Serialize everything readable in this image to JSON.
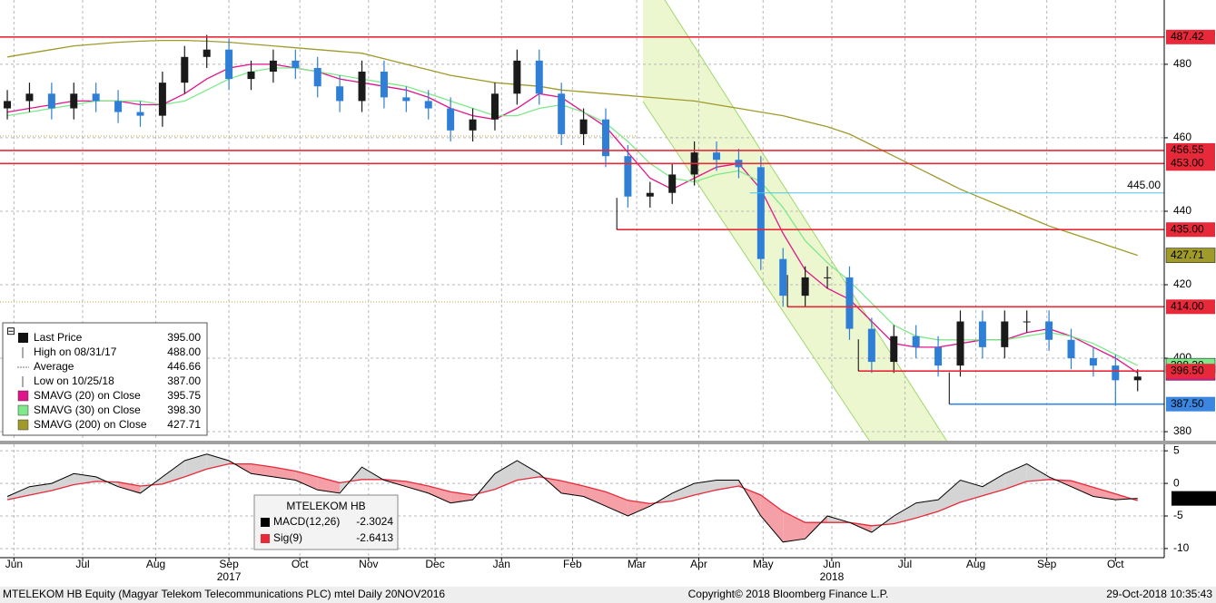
{
  "chart_data": {
    "type": "candlestick",
    "x": [
      0,
      1,
      2,
      3,
      4,
      5,
      6,
      7,
      8,
      9,
      10,
      11,
      12,
      13,
      14,
      15,
      16,
      17,
      18,
      19,
      20,
      21,
      22,
      23,
      24,
      25,
      26,
      27,
      28,
      29,
      30,
      31,
      32,
      33,
      34,
      35,
      36,
      37,
      38,
      39,
      40,
      41,
      42,
      43,
      44,
      45,
      46,
      47,
      48,
      49,
      50,
      51
    ],
    "xlim": [
      -0.33,
      52.2
    ],
    "xticks": [
      {
        "value": 0.3,
        "label": "Jun"
      },
      {
        "value": 3.4,
        "label": "Jul"
      },
      {
        "value": 6.7,
        "label": "Aug"
      },
      {
        "value": 10.0,
        "label": "Sep"
      },
      {
        "value": 13.2,
        "label": "Oct"
      },
      {
        "value": 16.3,
        "label": "Nov"
      },
      {
        "value": 19.3,
        "label": "Dec"
      },
      {
        "value": 22.3,
        "label": "Jan"
      },
      {
        "value": 25.5,
        "label": "Feb"
      },
      {
        "value": 28.4,
        "label": "Mar"
      },
      {
        "value": 31.2,
        "label": "Apr"
      },
      {
        "value": 34.1,
        "label": "May"
      },
      {
        "value": 37.2,
        "label": "Jun"
      },
      {
        "value": 40.5,
        "label": "Jul"
      },
      {
        "value": 43.7,
        "label": "Aug"
      },
      {
        "value": 46.9,
        "label": "Sep"
      },
      {
        "value": 50.0,
        "label": "Oct"
      }
    ],
    "year_ticks": [
      {
        "value": 10.0,
        "label": "2017"
      },
      {
        "value": 37.2,
        "label": "2018"
      }
    ],
    "ylim": [
      377.3,
      497.5
    ],
    "yticks": [
      380,
      400,
      420,
      440,
      460,
      480
    ],
    "grid": true,
    "up_color": "#1a1a1a",
    "down_color": "#2f7fd6",
    "open": [
      468,
      470,
      472,
      468,
      472,
      470,
      467,
      466,
      475,
      482,
      484,
      476,
      478,
      481,
      479,
      474,
      470,
      478,
      471,
      470,
      468,
      462,
      465,
      472,
      481,
      472,
      461,
      465,
      455,
      444,
      445,
      450,
      456,
      454,
      452,
      427,
      417,
      422,
      422,
      408,
      399,
      406,
      403,
      398,
      410,
      403,
      410,
      410,
      405,
      400,
      398,
      394
    ],
    "high": [
      473,
      475,
      475,
      475,
      475,
      473,
      470,
      478,
      485,
      488,
      487,
      481,
      484,
      484,
      482,
      477,
      481,
      481,
      474,
      473,
      471,
      468,
      475,
      484,
      484,
      475,
      468,
      468,
      458,
      448,
      453,
      459,
      459,
      457,
      455,
      430,
      425,
      425,
      425,
      411,
      409,
      409,
      406,
      413,
      413,
      413,
      413,
      413,
      408,
      403,
      401,
      397
    ],
    "low": [
      465,
      467,
      465,
      465,
      467,
      464,
      463,
      463,
      472,
      479,
      473,
      473,
      475,
      476,
      471,
      467,
      467,
      468,
      467,
      465,
      459,
      459,
      462,
      469,
      469,
      458,
      458,
      452,
      441,
      441,
      442,
      447,
      451,
      449,
      424,
      414,
      414,
      419,
      405,
      396,
      396,
      400,
      395,
      395,
      400,
      400,
      407,
      402,
      397,
      395,
      387,
      391
    ],
    "close": [
      470,
      472,
      468,
      472,
      470,
      467,
      466,
      475,
      482,
      484,
      476,
      478,
      481,
      479,
      474,
      470,
      478,
      471,
      470,
      468,
      462,
      465,
      472,
      481,
      472,
      461,
      465,
      455,
      444,
      445,
      450,
      456,
      454,
      452,
      427,
      417,
      422,
      422,
      408,
      399,
      406,
      403,
      398,
      410,
      403,
      410,
      410,
      405,
      400,
      398,
      394,
      395
    ],
    "series": [
      {
        "name": "SMAVG (20)  on Close",
        "color": "#e0158c",
        "last_label": "395.75",
        "values": [
          467,
          468,
          469,
          470,
          470,
          470,
          469,
          469,
          472,
          476,
          479,
          480,
          480,
          479,
          478,
          476,
          475,
          474,
          473,
          471,
          468,
          466,
          465,
          468,
          472,
          471,
          467,
          463,
          456,
          449,
          446,
          449,
          452,
          453,
          446,
          434,
          424,
          419,
          416,
          410,
          404,
          403,
          403,
          404,
          405,
          405,
          407,
          408,
          406,
          403,
          400,
          396
        ]
      },
      {
        "name": "SMAVG (30)  on Close",
        "color": "#7ee88a",
        "last_label": "398.30",
        "values": [
          466,
          467,
          468,
          469,
          470,
          470,
          470,
          469,
          470,
          473,
          476,
          478,
          479,
          479,
          478,
          477,
          476,
          475,
          474,
          472,
          470,
          468,
          466,
          466,
          468,
          469,
          467,
          464,
          459,
          453,
          449,
          448,
          450,
          451,
          448,
          441,
          432,
          426,
          421,
          415,
          409,
          406,
          405,
          405,
          405,
          405,
          406,
          407,
          406,
          404,
          401,
          398
        ]
      },
      {
        "name": "SMAVG (200)  on Close",
        "color": "#a09a2a",
        "last_label": "427.71",
        "values": [
          482,
          483,
          484,
          485,
          485.5,
          486,
          486.3,
          486.5,
          486.5,
          486.3,
          486,
          485.5,
          485,
          484.5,
          484,
          483.5,
          483,
          481.5,
          480,
          478.5,
          477,
          476,
          475,
          474.5,
          474,
          473,
          472.5,
          472,
          471.5,
          471,
          470.5,
          470,
          469,
          468,
          467,
          466,
          464.5,
          463,
          461,
          458,
          455,
          452,
          449,
          446,
          443.5,
          441,
          438.5,
          436,
          434,
          432,
          430,
          428
        ]
      }
    ],
    "levels": [
      {
        "value": 487.42,
        "label": "487.42",
        "color": "#e8293a",
        "box": true
      },
      {
        "value": 456.55,
        "label": "456.55",
        "color": "#e8293a",
        "box": true
      },
      {
        "value": 453.0,
        "label": "453.00",
        "color": "#e8293a",
        "box": true
      },
      {
        "value": 445.0,
        "label": "445.00",
        "color": "#4cc3e6",
        "box": false,
        "from": 33.5
      },
      {
        "value": 435.0,
        "label": "435.00",
        "color": "#e8293a",
        "box": true,
        "from": 27.5
      },
      {
        "value": 414.0,
        "label": "414.00",
        "color": "#e8293a",
        "box": true,
        "from": 35.2
      },
      {
        "value": 396.5,
        "label": "396.50",
        "color": "#e8293a",
        "box": true,
        "from": 38.4
      },
      {
        "value": 387.5,
        "label": "387.50",
        "color": "#3a86e0",
        "box": true,
        "from": 42.5
      }
    ],
    "legend": [
      {
        "label": "Last Price",
        "value": "395.00"
      },
      {
        "label": "High on 08/31/17",
        "value": "488.00"
      },
      {
        "label": "Average",
        "value": "446.66"
      },
      {
        "label": "Low on 10/25/18",
        "value": "387.00"
      },
      {
        "label": "SMAVG (20)  on Close",
        "value": "395.75",
        "color": "#e0158c"
      },
      {
        "label": "SMAVG (30)  on Close",
        "value": "398.30",
        "color": "#7ee88a"
      },
      {
        "label": "SMAVG (200)  on Close",
        "value": "427.71",
        "color": "#a09a2a"
      }
    ],
    "macd": {
      "title": "MTELEKOM HB",
      "ylim": [
        -11.4,
        6
      ],
      "yticks": [
        5,
        0,
        -5,
        -10
      ],
      "last_label": "-2.3024",
      "macd_name": "MACD(12,26)",
      "macd_value": "-2.3024",
      "macd_color": "#000000",
      "signal_name": "Sig(9)",
      "signal_value": "-2.6413",
      "signal_color": "#e8293a",
      "values": [
        -2,
        -0.5,
        0,
        1.5,
        1,
        -0.5,
        -1.5,
        1,
        3.5,
        4.5,
        3.5,
        1.5,
        1,
        0.5,
        -1,
        -1.5,
        2.5,
        0.5,
        -0.5,
        -1.5,
        -3,
        -2.5,
        1.5,
        3.5,
        1.5,
        -1.5,
        -2,
        -3.5,
        -5,
        -3.5,
        -1.5,
        0,
        0.5,
        0.5,
        -5,
        -9,
        -8.5,
        -5,
        -6,
        -7.5,
        -5,
        -3,
        -2.5,
        0.5,
        -0.5,
        1.5,
        3,
        1,
        -0.5,
        -2,
        -2.5,
        -2.3024
      ],
      "signal": [
        -2.5,
        -1.8,
        -1.1,
        -0.2,
        0.3,
        0.2,
        -0.4,
        -0.1,
        1,
        2.2,
        3,
        3,
        2.5,
        1.9,
        1,
        0.1,
        0.6,
        0.6,
        0.3,
        -0.4,
        -1.3,
        -1.8,
        -0.9,
        0.5,
        1,
        0.4,
        -0.4,
        -1.3,
        -2.6,
        -3.1,
        -2.7,
        -1.8,
        -1,
        -0.4,
        -1.8,
        -4.3,
        -6,
        -6,
        -6,
        -6.5,
        -6.2,
        -5.3,
        -4.3,
        -2.9,
        -1.9,
        -0.9,
        0.3,
        0.6,
        0.4,
        -0.6,
        -1.6,
        -2.6413
      ]
    }
  },
  "footer": {
    "left": "MTELEKOM HB Equity (Magyar Telekom Telecommunications PLC) mtel  Daily 20NOV2016",
    "center": "Copyright© 2018 Bloomberg Finance L.P.",
    "right": "29-Oct-2018 10:35:43"
  }
}
